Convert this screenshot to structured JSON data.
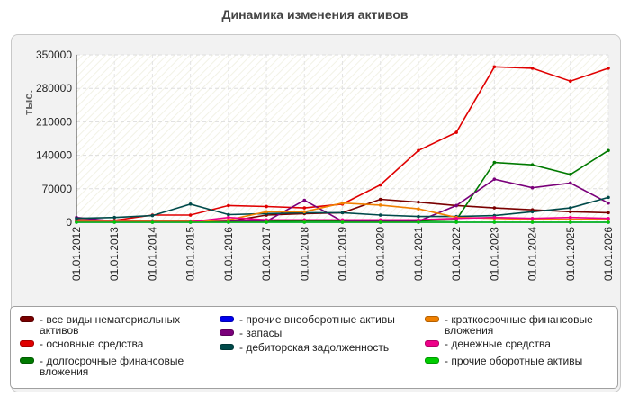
{
  "chart_data": {
    "type": "line",
    "title": "Динамика изменения активов",
    "ylabel": "тыс.",
    "xlabel": "",
    "ylim": [
      0,
      350000
    ],
    "yticks": [
      0,
      70000,
      140000,
      210000,
      280000,
      350000
    ],
    "grid": true,
    "legend_position": "bottom",
    "categories": [
      "01.01.2012",
      "01.01.2013",
      "01.01.2014",
      "01.01.2015",
      "01.01.2016",
      "01.01.2017",
      "01.01.2018",
      "01.01.2019",
      "01.01.2020",
      "01.01.2021",
      "01.01.2022",
      "01.01.2023",
      "01.01.2024",
      "01.01.2025",
      "01.01.2026"
    ],
    "series": [
      {
        "name": "- все виды нематериальных активов",
        "color": "#7a0000",
        "values": [
          3000,
          3000,
          3000,
          2000,
          2000,
          15000,
          18000,
          20000,
          48000,
          42000,
          35000,
          30000,
          26000,
          22000,
          20000
        ]
      },
      {
        "name": "- основные средства",
        "color": "#e00000",
        "values": [
          5000,
          4000,
          15000,
          15000,
          35000,
          33000,
          30000,
          38000,
          78000,
          150000,
          188000,
          325000,
          322000,
          295000,
          322000
        ]
      },
      {
        "name": "- долгосрочные финансовые вложения",
        "color": "#007a00",
        "values": [
          2000,
          2000,
          2000,
          2000,
          2000,
          2000,
          3000,
          3000,
          3000,
          3000,
          5000,
          125000,
          120000,
          100000,
          150000
        ]
      },
      {
        "name": "- прочие внеоборотные активы",
        "color": "#0000ee",
        "values": [
          0,
          0,
          0,
          0,
          0,
          0,
          0,
          0,
          0,
          0,
          0,
          0,
          0,
          0,
          0
        ]
      },
      {
        "name": "- запасы",
        "color": "#7a007a",
        "values": [
          10000,
          2000,
          1000,
          1000,
          2000,
          2000,
          46000,
          2000,
          2000,
          2000,
          35000,
          90000,
          72000,
          82000,
          40000
        ]
      },
      {
        "name": "- дебиторская задолженность",
        "color": "#004a4a",
        "values": [
          8000,
          10000,
          14000,
          38000,
          16000,
          18000,
          20000,
          20000,
          15000,
          12000,
          12000,
          14000,
          22000,
          30000,
          52000
        ]
      },
      {
        "name": "- краткосрочные финансовые вложения",
        "color": "#f08000",
        "values": [
          2000,
          2000,
          2000,
          2000,
          5000,
          22000,
          22000,
          40000,
          36000,
          28000,
          10000,
          8000,
          6000,
          6000,
          6000
        ]
      },
      {
        "name": "- денежные средства",
        "color": "#ee0088",
        "values": [
          1000,
          1000,
          1000,
          1000,
          10000,
          5000,
          5000,
          5000,
          5000,
          5000,
          8000,
          10000,
          8000,
          10000,
          8000
        ]
      },
      {
        "name": "- прочие оборотные активы",
        "color": "#00cc00",
        "values": [
          0,
          0,
          0,
          0,
          0,
          0,
          0,
          0,
          0,
          0,
          0,
          0,
          0,
          0,
          0
        ]
      }
    ]
  }
}
